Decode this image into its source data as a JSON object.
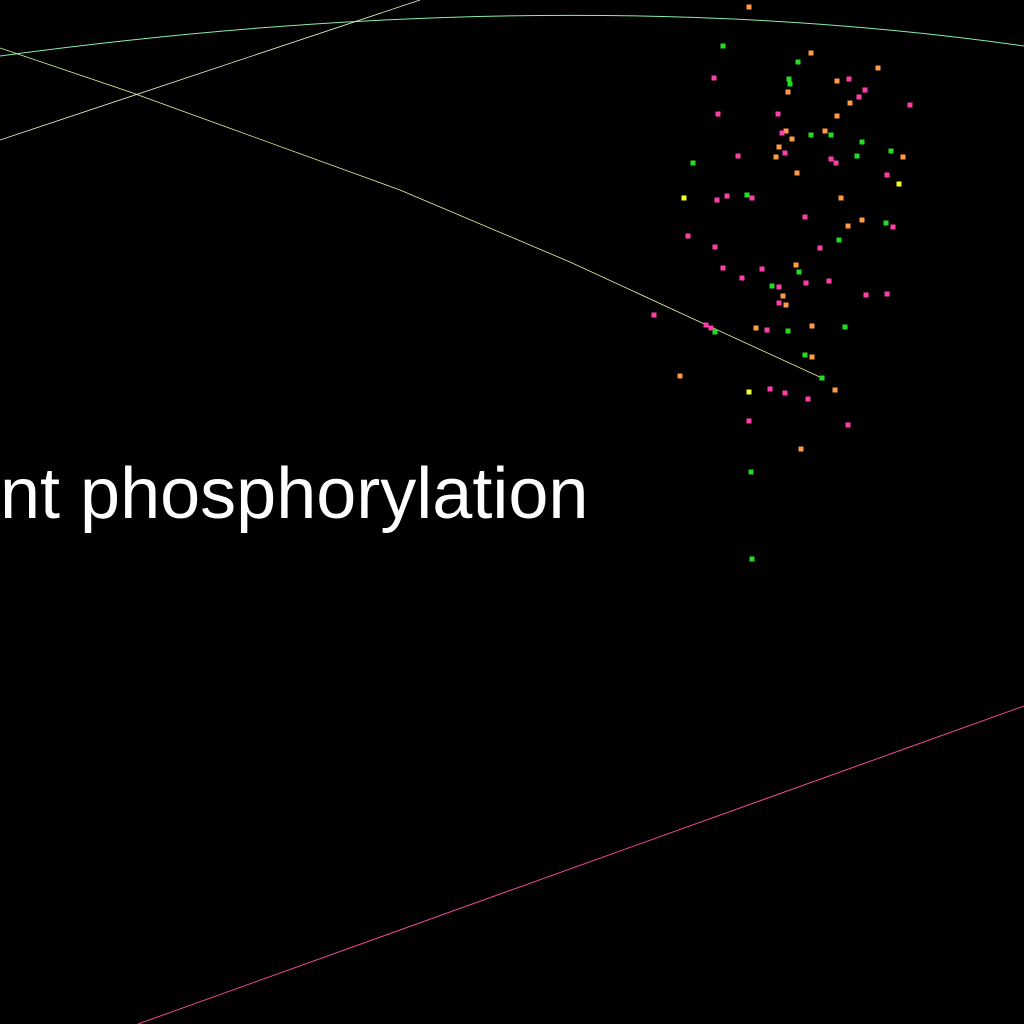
{
  "caption": "nt phosphorylation",
  "colors": {
    "background": "#000000",
    "text": "#ffffff",
    "arc": "#86efac",
    "curve": "#d9f99d",
    "diagonal": "#ecfccb",
    "line_bottom": "#ec4899",
    "dot_green": "#22dd22",
    "dot_pink": "#ff3fa8",
    "dot_orange": "#ff9a45",
    "dot_yellow": "#f2ff2a"
  }
}
